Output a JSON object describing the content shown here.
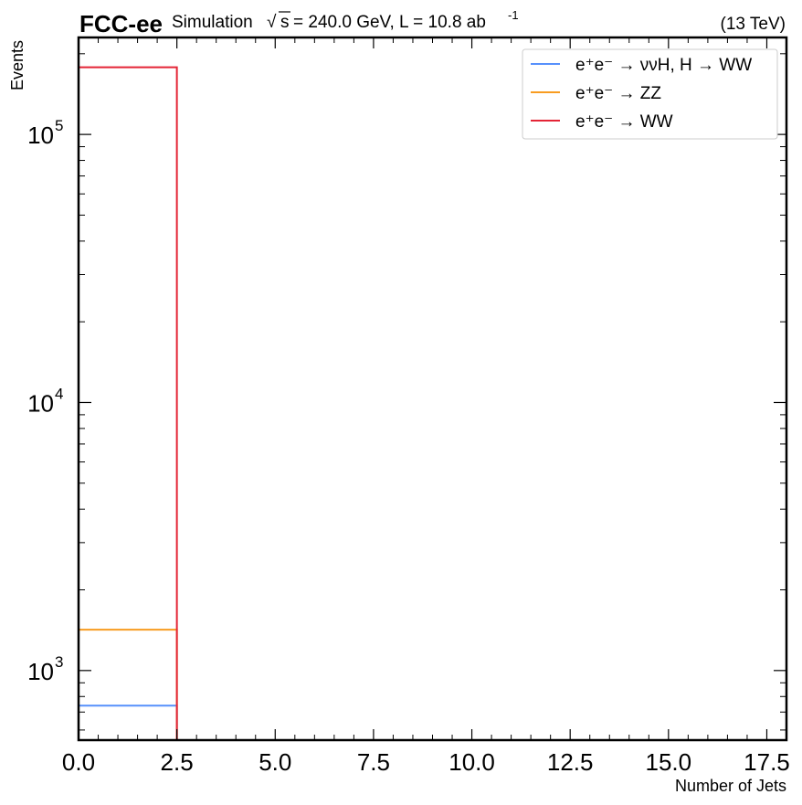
{
  "header": {
    "experiment": "FCC-ee",
    "simulation_label": "Simulation",
    "sqrt_s_label": "s",
    "energy_text": "= 240.0 GeV, L = 10.8 ab",
    "lumi_exponent": "-1",
    "energy_right": "(13 TeV)"
  },
  "chart_data": {
    "type": "histogram",
    "xlabel": "Number of Jets",
    "ylabel": "Events",
    "xlim": [
      0,
      18
    ],
    "ylim": [
      550,
      230000
    ],
    "yscale": "log",
    "x_ticks": [
      "0.0",
      "2.5",
      "5.0",
      "7.5",
      "10.0",
      "12.5",
      "15.0",
      "17.5"
    ],
    "x_tick_values": [
      0,
      2.5,
      5,
      7.5,
      10,
      12.5,
      15,
      17.5
    ],
    "y_ticks": [
      {
        "value": 1000,
        "mantissa": "10",
        "exponent": "3"
      },
      {
        "value": 10000,
        "mantissa": "10",
        "exponent": "4"
      },
      {
        "value": 100000,
        "mantissa": "10",
        "exponent": "5"
      }
    ],
    "bin_edges": [
      0,
      2.5
    ],
    "series": [
      {
        "name": "e⁺e⁻ → ννH, H → WW",
        "color": "#5790fc",
        "values": [
          740
        ]
      },
      {
        "name": "e⁺e⁻ → ZZ",
        "color": "#f89c20",
        "values": [
          1420
        ]
      },
      {
        "name": "e⁺e⁻ → WW",
        "color": "#e42536",
        "values": [
          178000
        ]
      }
    ],
    "legend_position": "top-right",
    "grid": false
  }
}
